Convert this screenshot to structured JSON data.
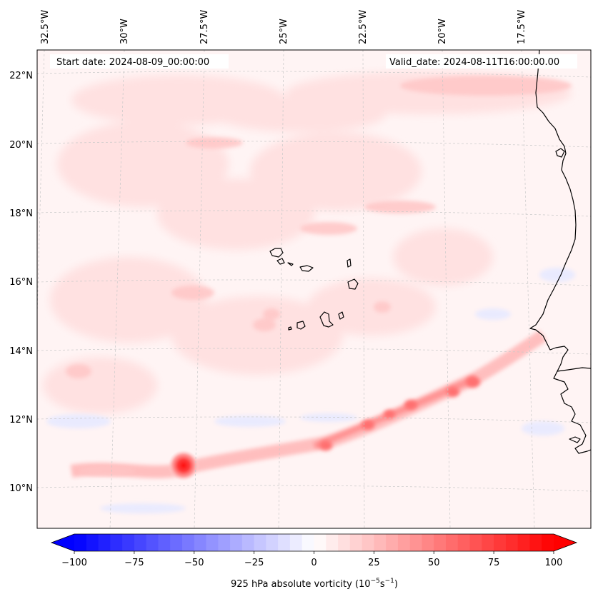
{
  "header": {
    "start_date": "Start date: 2024-08-09_00:00:00",
    "valid_date": "Valid_date: 2024-08-11T16:00:00.00"
  },
  "map": {
    "lon_labels": [
      "32.5°W",
      "30°W",
      "27.5°W",
      "25°W",
      "22.5°W",
      "20°W",
      "17.5°W"
    ],
    "lat_labels": [
      "22°N",
      "20°N",
      "18°N",
      "16°N",
      "14°N",
      "12°N",
      "10°N"
    ],
    "gridlines": true,
    "coastline_color": "#000000"
  },
  "colorbar": {
    "label_prefix": "925 hPa absolute vorticity (10",
    "label_exp1": "−5",
    "label_mid": "s",
    "label_exp2": "−1",
    "label_suffix": ")",
    "ticks": [
      "−100",
      "−75",
      "−50",
      "−25",
      "0",
      "25",
      "50",
      "75",
      "100"
    ],
    "min": -100,
    "max": 100,
    "colors": {
      "low": "#0000ff",
      "mid": "#ffffff",
      "high": "#ff0000"
    }
  }
}
